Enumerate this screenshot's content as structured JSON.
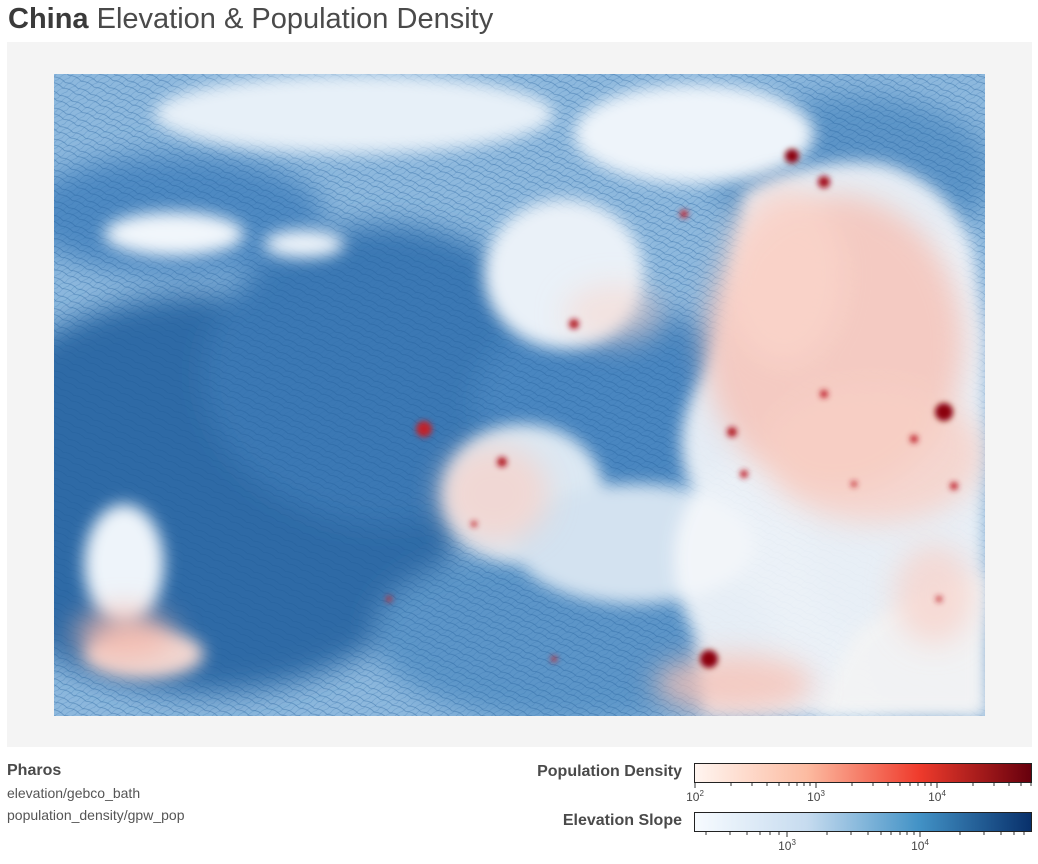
{
  "header": {
    "title_bold": "China",
    "title_rest": "Elevation & Population Density"
  },
  "source": {
    "name": "Pharos",
    "layers": [
      "elevation/gebco_bath",
      "population_density/gpw_pop"
    ]
  },
  "legends": {
    "population": {
      "label": "Population Density",
      "scale": "log",
      "colors": [
        "#fff5f0",
        "#fcbba1",
        "#ef3b2c",
        "#67000d"
      ],
      "ticks": [
        {
          "base": "10",
          "exp": "2"
        },
        {
          "base": "10",
          "exp": "3"
        },
        {
          "base": "10",
          "exp": "4"
        }
      ]
    },
    "elevation": {
      "label": "Elevation Slope",
      "scale": "log",
      "colors": [
        "#f7fbff",
        "#c6dbef",
        "#4292c6",
        "#08306b"
      ],
      "ticks": [
        {
          "base": "10",
          "exp": "3"
        },
        {
          "base": "10",
          "exp": "4"
        }
      ]
    }
  },
  "map_colors": {
    "panel": "#f4f4f4",
    "elevation_dark": "#2f6aa6",
    "elevation_mid": "#6fa3cf",
    "population_light": "#f6c3b8",
    "population_hot": "#8b0010"
  }
}
